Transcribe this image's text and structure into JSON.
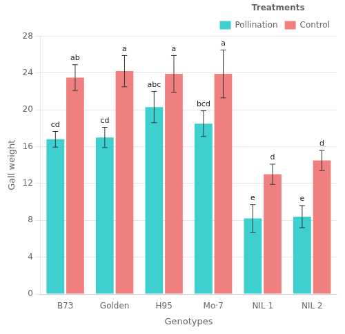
{
  "chart_data": {
    "type": "bar",
    "categories": [
      "B73",
      "Golden",
      "H95",
      "Mo·7",
      "NIL 1",
      "NIL 2"
    ],
    "series": [
      {
        "name": "Pollination",
        "color": "#3ECFCF",
        "values": [
          16.8,
          17.0,
          20.3,
          18.5,
          8.2,
          8.4
        ],
        "errors": [
          0.85,
          1.1,
          1.7,
          1.4,
          1.5,
          1.2
        ],
        "annotations": [
          "cd",
          "cd",
          "abc",
          "bcd",
          "e",
          "e"
        ]
      },
      {
        "name": "Control",
        "color": "#F08080",
        "values": [
          23.5,
          24.2,
          23.9,
          23.9,
          13.0,
          14.5
        ],
        "errors": [
          1.4,
          1.7,
          2.0,
          2.6,
          1.1,
          1.1
        ],
        "annotations": [
          "ab",
          "a",
          "a",
          "a",
          "d",
          "d"
        ]
      }
    ],
    "xlabel": "Genotypes",
    "ylabel": "Gall weight",
    "legend_title": "Treatments",
    "legend": "upper right",
    "ylim": [
      0,
      28
    ],
    "yticks": [
      0,
      4,
      8,
      12,
      16,
      20,
      24,
      28
    ],
    "grid": true
  }
}
